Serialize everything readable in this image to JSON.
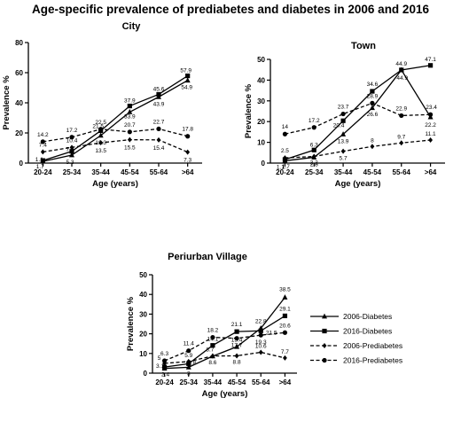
{
  "figure": {
    "title": "Age-specific prevalence of prediabetes and diabetes in 2006 and 2016"
  },
  "legend": {
    "placement": "right of Periurban Village panel",
    "entries": [
      "2006-Diabetes",
      "2016-Diabetes",
      "2006-Prediabetes",
      "2016-Prediabetes"
    ]
  },
  "series_styles": {
    "2006-Diabetes": {
      "line": "solid",
      "marker": "triangle",
      "color": "#000000"
    },
    "2016-Diabetes": {
      "line": "solid",
      "marker": "square",
      "color": "#000000"
    },
    "2006-Prediabetes": {
      "line": "dashed",
      "marker": "diamond",
      "color": "#000000"
    },
    "2016-Prediabetes": {
      "line": "dashed",
      "marker": "circle",
      "color": "#000000"
    }
  },
  "chart_data": [
    {
      "type": "line",
      "title": "City",
      "xlabel": "Age (years)",
      "ylabel": "Prevalence %",
      "categories": [
        "20-24",
        "25-34",
        "35-44",
        "45-54",
        "55-64",
        ">64"
      ],
      "ylim": [
        0,
        80
      ],
      "yticks": [
        0,
        20,
        40,
        60,
        80
      ],
      "series": [
        {
          "name": "2006-Diabetes",
          "values": [
            1.1,
            5.3,
            18.3,
            33.9,
            43.9,
            54.9
          ]
        },
        {
          "name": "2016-Diabetes",
          "values": [
            1.7,
            7.8,
            21.5,
            37.9,
            45.6,
            57.9
          ]
        },
        {
          "name": "2006-Prediabetes",
          "values": [
            7.4,
            10.4,
            13.5,
            15.5,
            15.4,
            7.3
          ]
        },
        {
          "name": "2016-Prediabetes",
          "values": [
            14.2,
            17.2,
            22.5,
            20.7,
            22.7,
            17.8
          ]
        }
      ]
    },
    {
      "type": "line",
      "title": "Town",
      "xlabel": "Age (years)",
      "ylabel": "Prevalence %",
      "categories": [
        "20-24",
        "25-34",
        "35-44",
        "45-54",
        "55-64",
        ">64"
      ],
      "ylim": [
        0,
        50
      ],
      "yticks": [
        0,
        10,
        20,
        30,
        40,
        50
      ],
      "series": [
        {
          "name": "2006-Diabetes",
          "values": [
            1.1,
            2.8,
            13.9,
            26.6,
            44.9,
            22.2
          ]
        },
        {
          "name": "2016-Diabetes",
          "values": [
            1.7,
            6.3,
            20.4,
            34.6,
            44.9,
            47.1
          ]
        },
        {
          "name": "2006-Prediabetes",
          "values": [
            2.5,
            3.2,
            5.7,
            8.0,
            9.7,
            11.1
          ]
        },
        {
          "name": "2016-Prediabetes",
          "values": [
            14,
            17.2,
            23.7,
            28.9,
            22.9,
            23.4
          ]
        }
      ]
    },
    {
      "type": "line",
      "title": "Periurban Village",
      "xlabel": "Age (years)",
      "ylabel": "Prevalence %",
      "categories": [
        "20-24",
        "25-34",
        "35-44",
        "45-54",
        "55-64",
        ">64"
      ],
      "ylim": [
        0,
        50
      ],
      "yticks": [
        0,
        10,
        20,
        30,
        40,
        50
      ],
      "series": [
        {
          "name": "2006-Diabetes",
          "values": [
            2.4,
            3.0,
            8.6,
            13.4,
            22.8,
            38.5
          ]
        },
        {
          "name": "2016-Diabetes",
          "values": [
            3.1,
            4.8,
            14.1,
            21.1,
            21.5,
            29.1
          ]
        },
        {
          "name": "2006-Prediabetes",
          "values": [
            5.0,
            5.9,
            8.7,
            8.8,
            10.6,
            7.7
          ]
        },
        {
          "name": "2016-Prediabetes",
          "values": [
            6.3,
            11.4,
            18.2,
            17.7,
            19.3,
            20.6
          ]
        }
      ]
    }
  ]
}
